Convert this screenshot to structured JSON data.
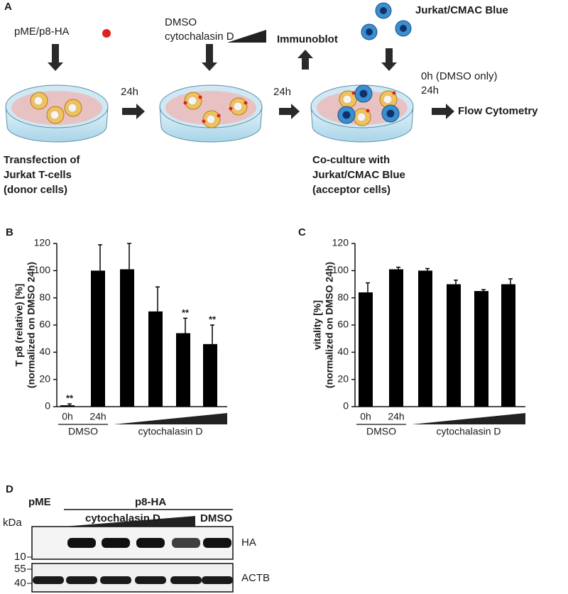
{
  "panel_a": {
    "label": "A",
    "plasmid": "pME/p8-HA",
    "treatment_lines": [
      "DMSO",
      "cytochalasin D"
    ],
    "immunoblot": "Immunoblot",
    "acceptor_title": "Jurkat/CMAC Blue",
    "time1": "24h",
    "time2": "24h",
    "flow_times": [
      "0h (DMSO only)",
      "24h"
    ],
    "flow": "Flow Cytometry",
    "caption_left": [
      "Transfection of",
      "Jurkat T-cells",
      "(donor cells)"
    ],
    "caption_right": [
      "Co-culture with",
      "Jurkat/CMAC Blue",
      "(acceptor cells)"
    ]
  },
  "chart_data": [
    {
      "type": "bar",
      "panel": "B",
      "y_label": [
        "T p8 (relative) [%]",
        "(normalized on DMSO 24h)"
      ],
      "categories": [
        "0h",
        "24h",
        null,
        null,
        null,
        null
      ],
      "group_labels": [
        "DMSO",
        "cytochalasin D"
      ],
      "values": [
        1,
        100,
        101,
        70,
        54,
        46
      ],
      "errors": [
        1,
        19,
        19,
        18,
        11,
        14
      ],
      "annotations": [
        {
          "index": 0,
          "label": "**"
        },
        {
          "index": 4,
          "label": "**"
        },
        {
          "index": 5,
          "label": "**"
        }
      ],
      "color": "#000000",
      "ylim": [
        0,
        120
      ],
      "yticks": [
        0,
        20,
        40,
        60,
        80,
        100,
        120
      ]
    },
    {
      "type": "bar",
      "panel": "C",
      "y_label": [
        "vitality [%]",
        "(normalized on DMSO 24h)"
      ],
      "categories": [
        "0h",
        "24h",
        null,
        null,
        null,
        null
      ],
      "group_labels": [
        "DMSO",
        "cytochalasin D"
      ],
      "values": [
        84,
        101,
        100,
        90,
        85,
        90
      ],
      "errors": [
        7,
        1.5,
        1.5,
        3,
        1,
        4
      ],
      "annotations": [],
      "color": "#000000",
      "ylim": [
        0,
        120
      ],
      "yticks": [
        0,
        20,
        40,
        60,
        80,
        100,
        120
      ]
    }
  ],
  "panel_d": {
    "label": "D",
    "lanes_left": "pME",
    "lanes_right": "p8-HA",
    "treatment": "cytochalasin D",
    "control": "DMSO",
    "unit": "kDa",
    "markers_top": [
      "10"
    ],
    "markers_bottom": [
      "55",
      "40"
    ],
    "blot_top": "HA",
    "blot_bottom": "ACTB"
  }
}
